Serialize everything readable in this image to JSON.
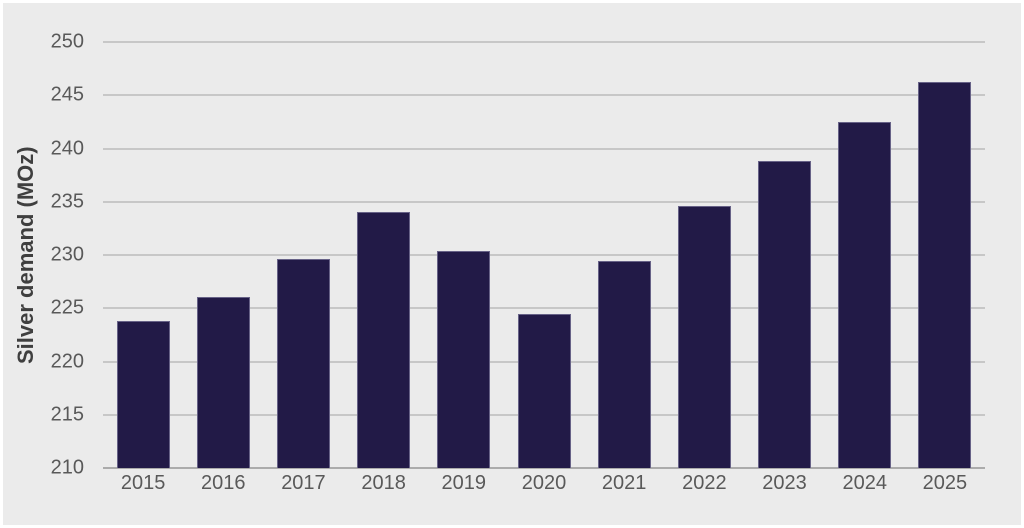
{
  "chart_data": {
    "type": "bar",
    "title": "",
    "xlabel": "",
    "ylabel": "Silver demand (MOz)",
    "categories": [
      "2015",
      "2016",
      "2017",
      "2018",
      "2019",
      "2020",
      "2021",
      "2022",
      "2023",
      "2024",
      "2025"
    ],
    "values": [
      223.8,
      226.1,
      229.6,
      234.0,
      230.4,
      224.5,
      229.4,
      234.6,
      238.8,
      242.5,
      246.2
    ],
    "ylim": [
      210,
      250
    ],
    "yticks": [
      210,
      215,
      220,
      225,
      230,
      235,
      240,
      245,
      250
    ],
    "grid": true,
    "legend": false,
    "colors": {
      "bar_fill": "#221a47",
      "bar_border": "#676287",
      "background": "#ebebeb",
      "frame": "#ffffff",
      "gridline": "#c7c7c7",
      "axis_line": "#ababab",
      "tick_label": "#595959",
      "axis_title": "#3f3f3f"
    }
  }
}
